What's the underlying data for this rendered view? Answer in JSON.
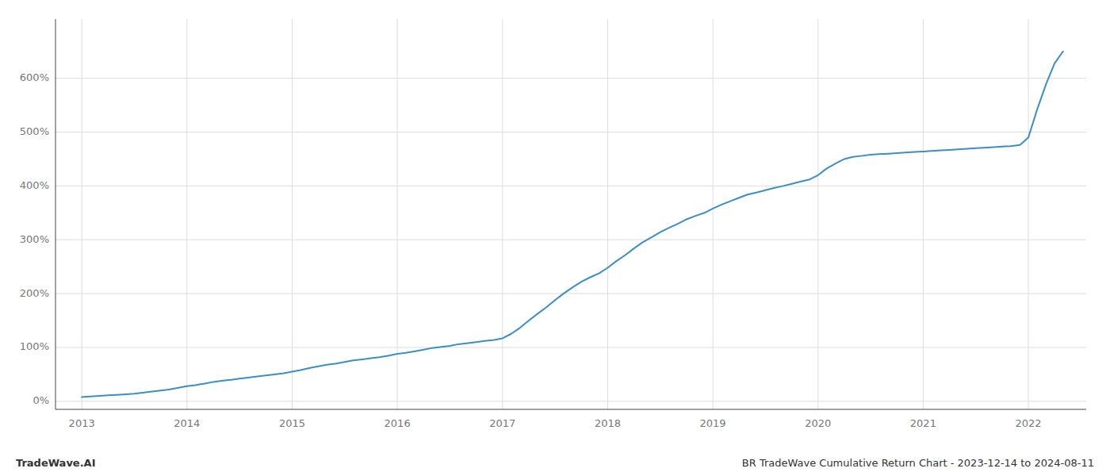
{
  "chart_data": {
    "type": "line",
    "color": "#3a8fc7",
    "grid": true,
    "annotations": [
      "TradeWave.AI",
      "BR TradeWave Cumulative Return Chart - 2023-12-14 to 2024-08-11"
    ],
    "x": [
      2013.0,
      2013.08,
      2013.17,
      2013.25,
      2013.33,
      2013.42,
      2013.5,
      2013.58,
      2013.67,
      2013.75,
      2013.83,
      2013.92,
      2014.0,
      2014.08,
      2014.17,
      2014.25,
      2014.33,
      2014.42,
      2014.5,
      2014.58,
      2014.67,
      2014.75,
      2014.83,
      2014.92,
      2015.0,
      2015.08,
      2015.17,
      2015.25,
      2015.33,
      2015.42,
      2015.5,
      2015.58,
      2015.67,
      2015.75,
      2015.83,
      2015.92,
      2016.0,
      2016.08,
      2016.17,
      2016.25,
      2016.33,
      2016.42,
      2016.5,
      2016.58,
      2016.67,
      2016.75,
      2016.83,
      2016.92,
      2017.0,
      2017.08,
      2017.17,
      2017.25,
      2017.33,
      2017.42,
      2017.5,
      2017.58,
      2017.67,
      2017.75,
      2017.83,
      2017.92,
      2018.0,
      2018.08,
      2018.17,
      2018.25,
      2018.33,
      2018.42,
      2018.5,
      2018.58,
      2018.67,
      2018.75,
      2018.83,
      2018.92,
      2019.0,
      2019.08,
      2019.17,
      2019.25,
      2019.33,
      2019.42,
      2019.5,
      2019.58,
      2019.67,
      2019.75,
      2019.83,
      2019.92,
      2020.0,
      2020.08,
      2020.17,
      2020.25,
      2020.33,
      2020.42,
      2020.5,
      2020.58,
      2020.67,
      2020.75,
      2020.83,
      2020.92,
      2021.0,
      2021.08,
      2021.17,
      2021.25,
      2021.33,
      2021.42,
      2021.5,
      2021.58,
      2021.67,
      2021.75,
      2021.83,
      2021.92,
      2022.0,
      2022.08,
      2022.17,
      2022.25,
      2022.33
    ],
    "values": [
      8,
      9,
      10,
      11,
      12,
      13,
      14,
      16,
      18,
      20,
      22,
      25,
      28,
      30,
      33,
      36,
      38,
      40,
      42,
      44,
      46,
      48,
      50,
      52,
      55,
      58,
      62,
      65,
      68,
      70,
      73,
      76,
      78,
      80,
      82,
      85,
      88,
      90,
      93,
      96,
      99,
      101,
      103,
      106,
      108,
      110,
      112,
      114,
      117,
      125,
      137,
      150,
      162,
      175,
      188,
      200,
      212,
      222,
      230,
      238,
      248,
      260,
      272,
      284,
      295,
      305,
      314,
      322,
      330,
      338,
      344,
      350,
      358,
      365,
      372,
      378,
      384,
      388,
      392,
      396,
      400,
      404,
      408,
      412,
      420,
      432,
      442,
      450,
      454,
      456,
      458,
      459,
      460,
      461,
      462,
      463,
      464,
      465,
      466,
      467,
      468,
      469,
      470,
      471,
      472,
      473,
      474,
      476,
      490,
      540,
      590,
      628,
      650
    ],
    "xlim": [
      2012.75,
      2022.55
    ],
    "xticks": [
      2013,
      2014,
      2015,
      2016,
      2017,
      2018,
      2019,
      2020,
      2021,
      2022
    ],
    "ylim": [
      -15,
      710
    ],
    "yticks": [
      {
        "value": 0,
        "label": "0%"
      },
      {
        "value": 100,
        "label": "100%"
      },
      {
        "value": 200,
        "label": "200%"
      },
      {
        "value": 300,
        "label": "300%"
      },
      {
        "value": 400,
        "label": "400%"
      },
      {
        "value": 500,
        "label": "500%"
      },
      {
        "value": 600,
        "label": "600%"
      }
    ]
  }
}
